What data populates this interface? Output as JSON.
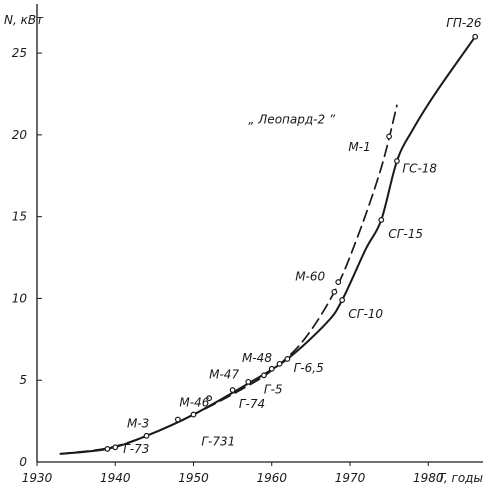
{
  "chart_data": {
    "type": "line",
    "ylabel": "N, кВт",
    "xlabel": "T, годы",
    "xlim": [
      1930,
      1987
    ],
    "ylim": [
      0,
      28
    ],
    "x_ticks": [
      1930,
      1940,
      1950,
      1960,
      1970,
      1980
    ],
    "y_ticks": [
      0,
      5,
      10,
      15,
      20,
      25
    ],
    "grid": false,
    "series": [
      {
        "style": "solid",
        "points": [
          {
            "x": 1933,
            "y": 0.5
          },
          {
            "x": 1939,
            "y": 0.8
          },
          {
            "x": 1944,
            "y": 1.6
          },
          {
            "x": 1950,
            "y": 2.9
          },
          {
            "x": 1957,
            "y": 4.8
          },
          {
            "x": 1962,
            "y": 6.3
          },
          {
            "x": 1967,
            "y": 8.5
          },
          {
            "x": 1969,
            "y": 9.9
          },
          {
            "x": 1972,
            "y": 13.0
          },
          {
            "x": 1974,
            "y": 14.8
          },
          {
            "x": 1976,
            "y": 18.4
          },
          {
            "x": 1978,
            "y": 20.3
          },
          {
            "x": 1981,
            "y": 22.6
          },
          {
            "x": 1986,
            "y": 26.0
          }
        ]
      },
      {
        "style": "dashed",
        "points": [
          {
            "x": 1933,
            "y": 0.5
          },
          {
            "x": 1939,
            "y": 0.85
          },
          {
            "x": 1944,
            "y": 1.6
          },
          {
            "x": 1950,
            "y": 2.9
          },
          {
            "x": 1956,
            "y": 4.4
          },
          {
            "x": 1960,
            "y": 5.6
          },
          {
            "x": 1964,
            "y": 7.4
          },
          {
            "x": 1968,
            "y": 10.4
          },
          {
            "x": 1971,
            "y": 13.8
          },
          {
            "x": 1974,
            "y": 18.0
          },
          {
            "x": 1976,
            "y": 21.8
          }
        ]
      }
    ],
    "markers": [
      {
        "x": 1939,
        "y": 0.8
      },
      {
        "x": 1940,
        "y": 0.9
      },
      {
        "x": 1944,
        "y": 1.6
      },
      {
        "x": 1948,
        "y": 2.6
      },
      {
        "x": 1950,
        "y": 2.9
      },
      {
        "x": 1952,
        "y": 3.9
      },
      {
        "x": 1955,
        "y": 4.4
      },
      {
        "x": 1957,
        "y": 4.9
      },
      {
        "x": 1959,
        "y": 5.3
      },
      {
        "x": 1960,
        "y": 5.7
      },
      {
        "x": 1961,
        "y": 6.0
      },
      {
        "x": 1962,
        "y": 6.3
      },
      {
        "x": 1968,
        "y": 10.4
      },
      {
        "x": 1968.5,
        "y": 11.0
      },
      {
        "x": 1969,
        "y": 9.9
      },
      {
        "x": 1974,
        "y": 14.8
      },
      {
        "x": 1975,
        "y": 19.9
      },
      {
        "x": 1976,
        "y": 18.4
      },
      {
        "x": 1986,
        "y": 26.0
      }
    ],
    "annotations": [
      {
        "text": "Г-73",
        "x": 1941.0,
        "y": 0.55
      },
      {
        "text": "М-3",
        "x": 1941.5,
        "y": 2.1
      },
      {
        "text": "М-46",
        "x": 1948.2,
        "y": 3.4
      },
      {
        "text": "Г-731",
        "x": 1951.0,
        "y": 1.0
      },
      {
        "text": "М-47",
        "x": 1952.0,
        "y": 5.1
      },
      {
        "text": "Г-74",
        "x": 1955.8,
        "y": 3.3
      },
      {
        "text": "Г-5",
        "x": 1959.0,
        "y": 4.2
      },
      {
        "text": "М-48",
        "x": 1956.2,
        "y": 6.1
      },
      {
        "text": "Г-6,5",
        "x": 1962.8,
        "y": 5.5
      },
      {
        "text": "М-60",
        "x": 1963.0,
        "y": 11.1
      },
      {
        "text": "СГ-10",
        "x": 1969.8,
        "y": 8.8
      },
      {
        "text": "СГ-15",
        "x": 1974.9,
        "y": 13.7
      },
      {
        "text": "ГС-18",
        "x": 1976.7,
        "y": 17.7
      },
      {
        "text": "М-1",
        "x": 1969.8,
        "y": 19.0
      },
      {
        "text": "„ Леопард-2 ”",
        "x": 1957.0,
        "y": 20.7
      },
      {
        "text": "ГП-26",
        "x": 1982.3,
        "y": 26.6
      }
    ]
  }
}
